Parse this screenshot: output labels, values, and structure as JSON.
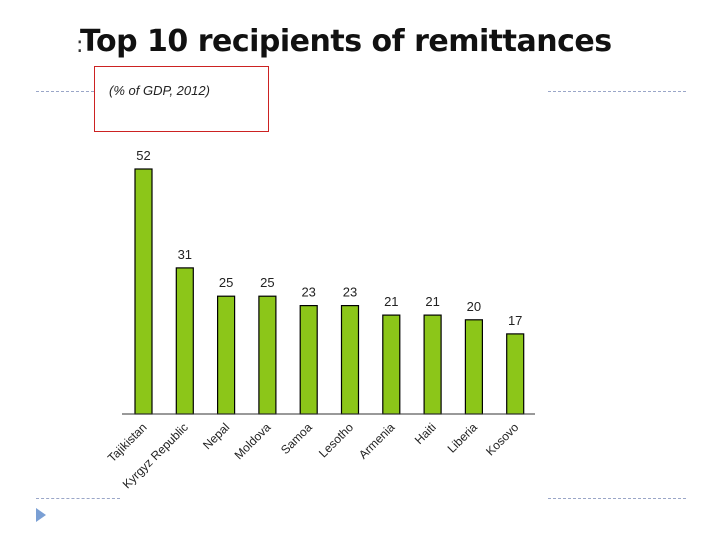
{
  "slide": {
    "title_prefix": ":",
    "title": "Top 10 recipients of remittances",
    "subtitle": "(% of GDP, 2012)"
  },
  "colors": {
    "bar_fill": "#8cc619",
    "bar_stroke": "#000000",
    "axis": "#333333",
    "accent_line": "#9aa6c8",
    "box_border": "#cc2222",
    "bullet": "#7a9fd4"
  },
  "icons": {
    "bullet": "triangle-right-icon"
  },
  "chart_data": {
    "type": "bar",
    "title": "Top 10 recipients of remittances",
    "subtitle": "(% of GDP, 2012)",
    "categories": [
      "Tajikistan",
      "Kyrgyz Republic",
      "Nepal",
      "Moldova",
      "Samoa",
      "Lesotho",
      "Armenia",
      "Haiti",
      "Liberia",
      "Kosovo"
    ],
    "values": [
      52,
      31,
      25,
      25,
      23,
      23,
      21,
      21,
      20,
      17
    ],
    "xlabel": "",
    "ylabel": "",
    "ylim": [
      0,
      52
    ],
    "grid": false,
    "legend": "none",
    "data_labels": true
  }
}
